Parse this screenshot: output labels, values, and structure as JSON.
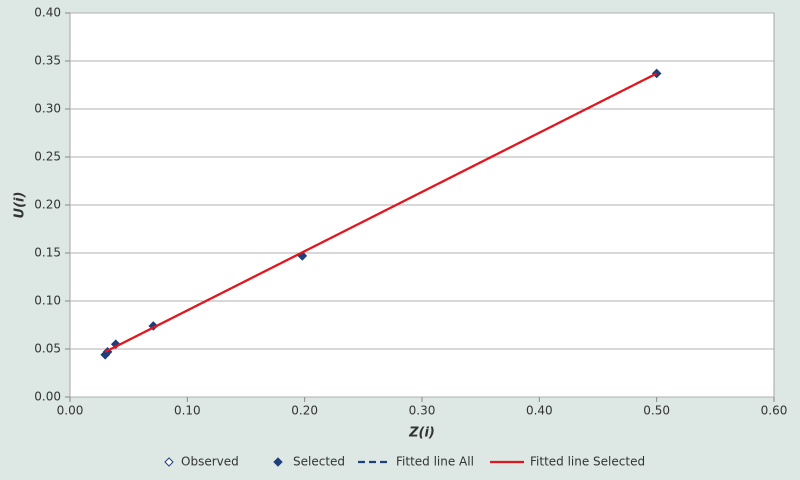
{
  "chart_data": {
    "type": "scatter",
    "xlabel": "Z(i)",
    "ylabel": "U(i)",
    "xlim": [
      0,
      0.6
    ],
    "ylim": [
      0,
      0.4
    ],
    "xticks": [
      {
        "value": 0,
        "label": "0.00"
      },
      {
        "value": 0.1,
        "label": "0.10"
      },
      {
        "value": 0.2,
        "label": "0.20"
      },
      {
        "value": 0.3,
        "label": "0.30"
      },
      {
        "value": 0.4,
        "label": "0.40"
      },
      {
        "value": 0.5,
        "label": "0.50"
      },
      {
        "value": 0.6,
        "label": "0.60"
      }
    ],
    "yticks": [
      {
        "value": 0,
        "label": "0.00"
      },
      {
        "value": 0.05,
        "label": "0.05"
      },
      {
        "value": 0.1,
        "label": "0.10"
      },
      {
        "value": 0.15,
        "label": "0.15"
      },
      {
        "value": 0.2,
        "label": "0.20"
      },
      {
        "value": 0.25,
        "label": "0.25"
      },
      {
        "value": 0.3,
        "label": "0.30"
      },
      {
        "value": 0.35,
        "label": "0.35"
      },
      {
        "value": 0.4,
        "label": "0.40"
      }
    ],
    "grid": true,
    "legend": "bottom",
    "series": [
      {
        "name": "Observed",
        "color": "#1f3e7c",
        "style": "hollow-diamond",
        "x": [
          0.03,
          0.032,
          0.039,
          0.071,
          0.198,
          0.5
        ],
        "values": [
          0.044,
          0.047,
          0.055,
          0.074,
          0.147,
          0.337
        ]
      },
      {
        "name": "Selected",
        "color": "#1f3e7c",
        "style": "diamond",
        "x": [
          0.03,
          0.032,
          0.039,
          0.071,
          0.198,
          0.5
        ],
        "values": [
          0.044,
          0.047,
          0.055,
          0.074,
          0.147,
          0.337
        ]
      },
      {
        "name": "Fitted line All",
        "color": "#1f3e7c",
        "style": "dashed",
        "x": [
          0.03,
          0.5
        ],
        "values": [
          0.047,
          0.337
        ]
      },
      {
        "name": "Fitted line Selected",
        "color": "#e8141b",
        "style": "solid",
        "x": [
          0.03,
          0.5
        ],
        "values": [
          0.047,
          0.337
        ]
      }
    ]
  }
}
